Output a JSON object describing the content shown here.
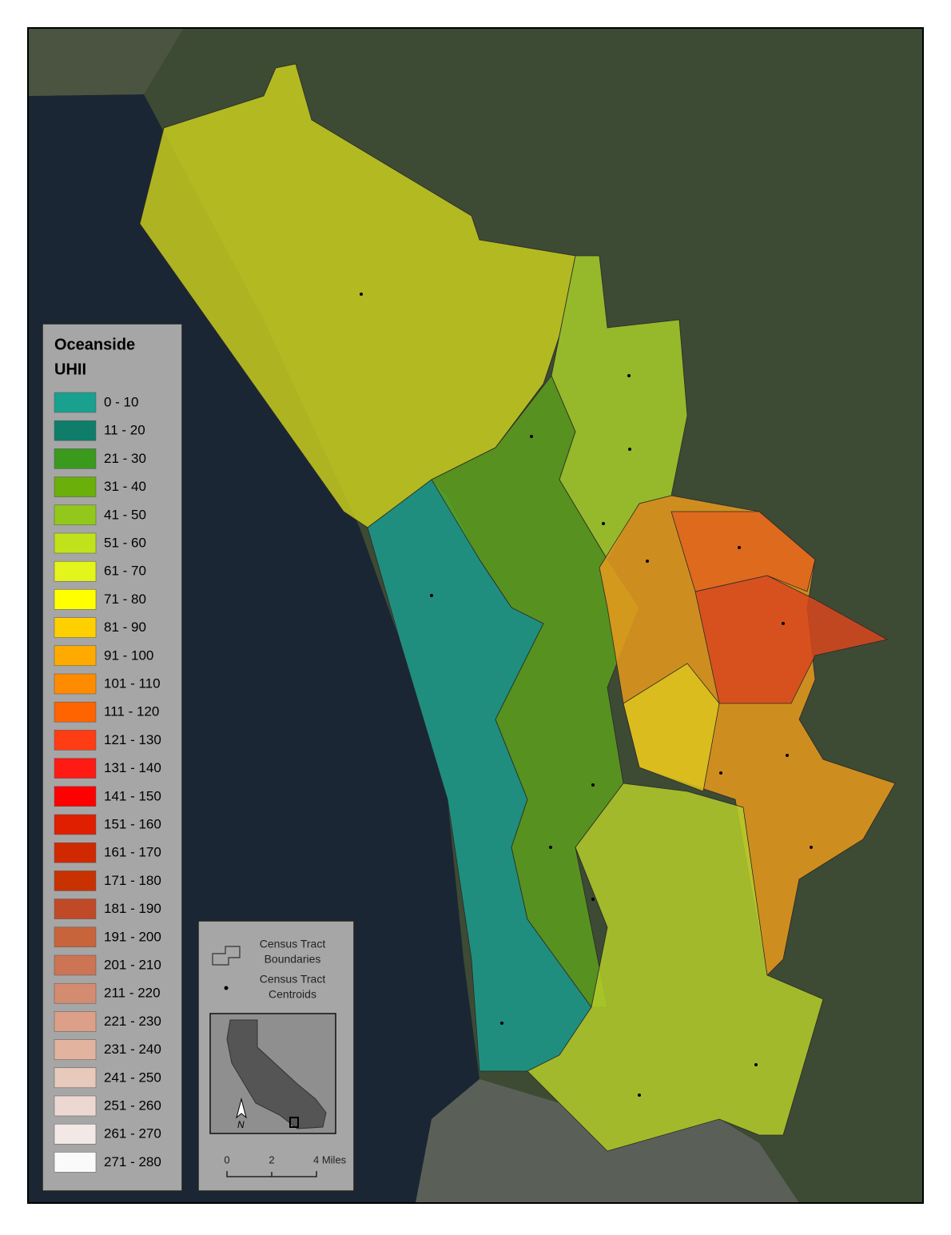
{
  "legend": {
    "title": [
      "Oceanside",
      "UHII"
    ],
    "classes": [
      {
        "label": "0 - 10",
        "color": "#1aa08f"
      },
      {
        "label": "11 - 20",
        "color": "#0e7d6a"
      },
      {
        "label": "21 - 30",
        "color": "#3a9a1e"
      },
      {
        "label": "31 - 40",
        "color": "#6aaf0a"
      },
      {
        "label": "41 - 50",
        "color": "#92c71c"
      },
      {
        "label": "51 - 60",
        "color": "#c0e21a"
      },
      {
        "label": "61 - 70",
        "color": "#e3f51a"
      },
      {
        "label": "71 - 80",
        "color": "#ffff00"
      },
      {
        "label": "81 - 90",
        "color": "#ffd000"
      },
      {
        "label": "91 - 100",
        "color": "#ffaa00"
      },
      {
        "label": "101 - 110",
        "color": "#ff8c00"
      },
      {
        "label": "111 - 120",
        "color": "#ff6400"
      },
      {
        "label": "121 - 130",
        "color": "#ff3c14"
      },
      {
        "label": "131 - 140",
        "color": "#ff1a14"
      },
      {
        "label": "141 - 150",
        "color": "#ff0000"
      },
      {
        "label": "151 - 160",
        "color": "#e01e00"
      },
      {
        "label": "161 - 170",
        "color": "#d02800"
      },
      {
        "label": "171 - 180",
        "color": "#c83200"
      },
      {
        "label": "181 - 190",
        "color": "#c04a28"
      },
      {
        "label": "191 - 200",
        "color": "#c8643c"
      },
      {
        "label": "201 - 210",
        "color": "#cc7454"
      },
      {
        "label": "211 - 220",
        "color": "#d48c70"
      },
      {
        "label": "221 - 230",
        "color": "#dca088"
      },
      {
        "label": "231 - 240",
        "color": "#e2b4a0"
      },
      {
        "label": "241 - 250",
        "color": "#e8cabc"
      },
      {
        "label": "251 - 260",
        "color": "#ecd8d0"
      },
      {
        "label": "261 - 270",
        "color": "#f2e8e6"
      },
      {
        "label": "271 - 280",
        "color": "#fafafa"
      }
    ]
  },
  "inset_legend": {
    "boundaries": [
      "Census Tract",
      "Boundaries"
    ],
    "centroids": [
      "Census Tract",
      "Centroids"
    ],
    "north": "N",
    "scale": [
      "0",
      "2",
      "4 Miles"
    ]
  }
}
